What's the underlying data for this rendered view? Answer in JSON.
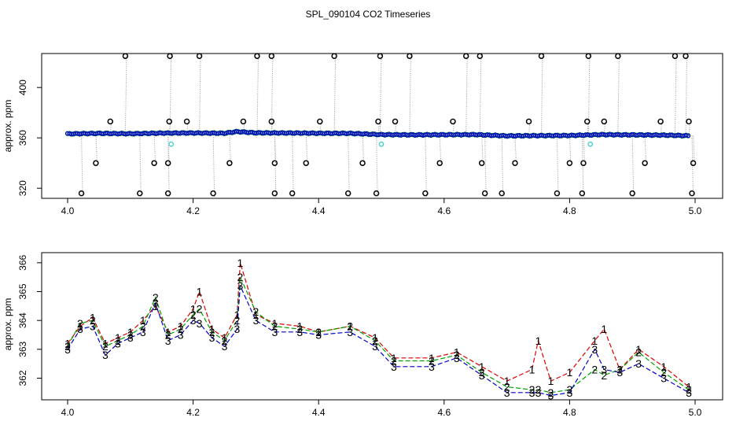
{
  "title": "SPL_090104  CO2 Timeseries",
  "colors": {
    "black": "#000000",
    "red": "#dd0000",
    "green": "#00a000",
    "blue": "#0000cc",
    "cyan": "#33cccc",
    "grey": "#999999"
  },
  "chart_data": [
    {
      "type": "scatter",
      "name": "top-panel",
      "ylabel": "approx. ppm",
      "xlim": [
        4.0,
        5.0
      ],
      "ylim": [
        312,
        427
      ],
      "xticks": [
        4.0,
        4.2,
        4.4,
        4.6,
        4.8,
        5.0
      ],
      "xtick_labels": [
        "4.0",
        "4.2",
        "4.4",
        "4.6",
        "4.8",
        "5.0"
      ],
      "yticks": [
        320,
        360,
        400
      ],
      "ytick_labels": [
        "320",
        "360",
        "400"
      ],
      "baseline": {
        "x": [
          4.0,
          4.05,
          4.1,
          4.15,
          4.2,
          4.25,
          4.27,
          4.3,
          4.35,
          4.4,
          4.45,
          4.5,
          4.55,
          4.6,
          4.65,
          4.7,
          4.75,
          4.8,
          4.85,
          4.9,
          4.95,
          4.99
        ],
        "y": [
          363.2,
          363.6,
          363.3,
          363.8,
          363.9,
          363.7,
          365.0,
          364.0,
          363.9,
          363.7,
          363.6,
          362.6,
          362.4,
          362.5,
          362.6,
          361.6,
          361.8,
          361.9,
          362.6,
          362.4,
          362.2,
          361.7
        ]
      },
      "outliers_high": [
        4.092,
        4.163,
        4.21,
        4.302,
        4.325,
        4.425,
        4.498,
        4.545,
        4.635,
        4.657,
        4.755,
        4.83,
        4.877,
        4.968,
        4.985
      ],
      "outliers_low": [
        4.022,
        4.115,
        4.16,
        4.232,
        4.33,
        4.358,
        4.447,
        4.492,
        4.57,
        4.665,
        4.692,
        4.78,
        4.82,
        4.9,
        4.995
      ],
      "outliers_mid": [
        4.068,
        4.162,
        4.19,
        4.28,
        4.325,
        4.402,
        4.495,
        4.522,
        4.614,
        4.735,
        4.828,
        4.855,
        4.945,
        4.99
      ],
      "outliers_low_mid": [
        4.045,
        4.138,
        4.16,
        4.258,
        4.33,
        4.38,
        4.47,
        4.593,
        4.66,
        4.713,
        4.8,
        4.822,
        4.92,
        4.997
      ],
      "outlier_values": {
        "high": 425,
        "mid": 373,
        "low_mid": 340,
        "low": 316
      },
      "cyan_points": [
        4.165,
        4.5,
        4.833
      ],
      "cyan_value": 355
    },
    {
      "type": "line",
      "name": "bottom-panel",
      "ylabel": "approx. ppm",
      "xlim": [
        4.0,
        5.0
      ],
      "ylim": [
        361.25,
        366.35
      ],
      "xticks": [
        4.0,
        4.2,
        4.4,
        4.6,
        4.8,
        5.0
      ],
      "xtick_labels": [
        "4.0",
        "4.2",
        "4.4",
        "4.6",
        "4.8",
        "5.0"
      ],
      "yticks": [
        362,
        363,
        364,
        365,
        366
      ],
      "ytick_labels": [
        "362",
        "363",
        "364",
        "365",
        "366"
      ],
      "series": [
        {
          "name": "1",
          "marker": "1",
          "color": "red",
          "x": [
            4.0,
            4.02,
            4.04,
            4.06,
            4.08,
            4.1,
            4.12,
            4.14,
            4.16,
            4.18,
            4.2,
            4.21,
            4.23,
            4.25,
            4.27,
            4.275,
            4.3,
            4.33,
            4.37,
            4.4,
            4.45,
            4.49,
            4.52,
            4.58,
            4.62,
            4.66,
            4.7,
            4.74,
            4.75,
            4.77,
            4.8,
            4.84,
            4.855,
            4.88,
            4.91,
            4.95,
            4.99
          ],
          "y": [
            363.2,
            363.8,
            364.1,
            363.2,
            363.4,
            363.6,
            364.0,
            364.5,
            363.6,
            363.8,
            364.4,
            365.0,
            363.7,
            363.4,
            364.2,
            366.0,
            364.2,
            363.9,
            363.8,
            363.6,
            363.8,
            363.4,
            362.7,
            362.7,
            362.9,
            362.4,
            361.9,
            362.3,
            363.3,
            361.9,
            362.2,
            363.3,
            363.7,
            362.3,
            363.0,
            362.4,
            361.7
          ]
        },
        {
          "name": "2",
          "marker": "2",
          "color": "green",
          "x": [
            4.0,
            4.02,
            4.04,
            4.06,
            4.08,
            4.1,
            4.12,
            4.14,
            4.16,
            4.18,
            4.2,
            4.21,
            4.23,
            4.25,
            4.27,
            4.275,
            4.3,
            4.33,
            4.37,
            4.4,
            4.45,
            4.49,
            4.52,
            4.58,
            4.62,
            4.66,
            4.7,
            4.74,
            4.75,
            4.77,
            4.8,
            4.84,
            4.855,
            4.88,
            4.91,
            4.95,
            4.99
          ],
          "y": [
            363.1,
            363.9,
            364.0,
            363.1,
            363.3,
            363.5,
            363.8,
            364.8,
            363.5,
            363.7,
            364.2,
            364.4,
            363.6,
            363.3,
            364.0,
            365.5,
            364.3,
            363.8,
            363.7,
            363.6,
            363.8,
            363.3,
            362.6,
            362.6,
            362.8,
            362.2,
            361.7,
            361.6,
            361.6,
            361.5,
            361.6,
            362.3,
            362.1,
            362.3,
            362.9,
            362.2,
            361.6
          ]
        },
        {
          "name": "3",
          "marker": "3",
          "color": "blue",
          "x": [
            4.0,
            4.02,
            4.04,
            4.06,
            4.08,
            4.1,
            4.12,
            4.14,
            4.16,
            4.18,
            4.2,
            4.21,
            4.23,
            4.25,
            4.27,
            4.275,
            4.3,
            4.33,
            4.37,
            4.4,
            4.45,
            4.49,
            4.52,
            4.58,
            4.62,
            4.66,
            4.7,
            4.74,
            4.75,
            4.77,
            4.8,
            4.84,
            4.855,
            4.88,
            4.91,
            4.95,
            4.99
          ],
          "y": [
            363.0,
            363.7,
            363.8,
            362.8,
            363.2,
            363.4,
            363.6,
            364.6,
            363.3,
            363.5,
            364.0,
            363.9,
            363.4,
            363.1,
            363.7,
            365.2,
            364.0,
            363.6,
            363.6,
            363.5,
            363.6,
            363.1,
            362.4,
            362.4,
            362.7,
            362.1,
            361.5,
            361.5,
            361.5,
            361.4,
            361.5,
            363.0,
            362.3,
            362.2,
            362.5,
            362.0,
            361.5
          ]
        }
      ]
    }
  ]
}
